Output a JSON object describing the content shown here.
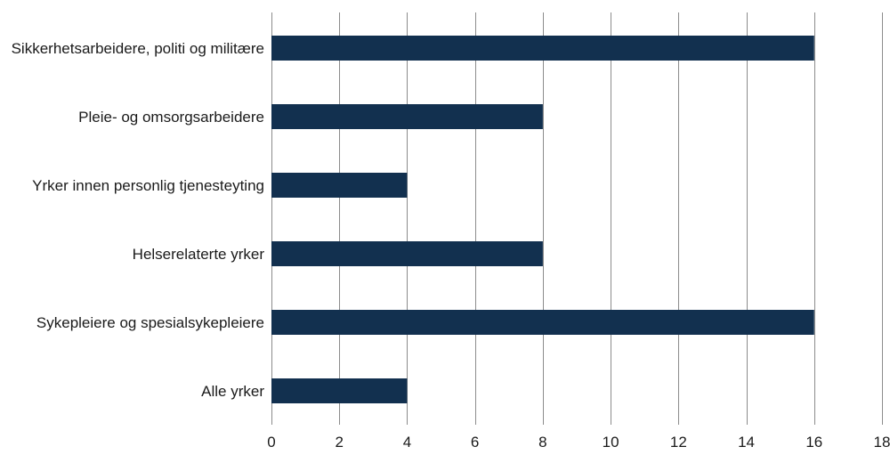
{
  "chart_data": {
    "type": "bar",
    "orientation": "horizontal",
    "title": "",
    "xlabel": "",
    "ylabel": "",
    "categories": [
      "Sikkerhetsarbeidere, politi og militære",
      "Pleie- og omsorgsarbeidere",
      "Yrker innen personlig tjenesteyting",
      "Helserelaterte yrker",
      "Sykepleiere og spesialsykepleiere",
      "Alle yrker"
    ],
    "values": [
      16,
      8,
      4,
      8,
      16,
      4
    ],
    "xlim": [
      0,
      18
    ],
    "xticks": [
      0,
      2,
      4,
      6,
      8,
      10,
      12,
      14,
      16,
      18
    ],
    "grid": "vertical",
    "legend": "none",
    "bar_color": "#12304f"
  }
}
